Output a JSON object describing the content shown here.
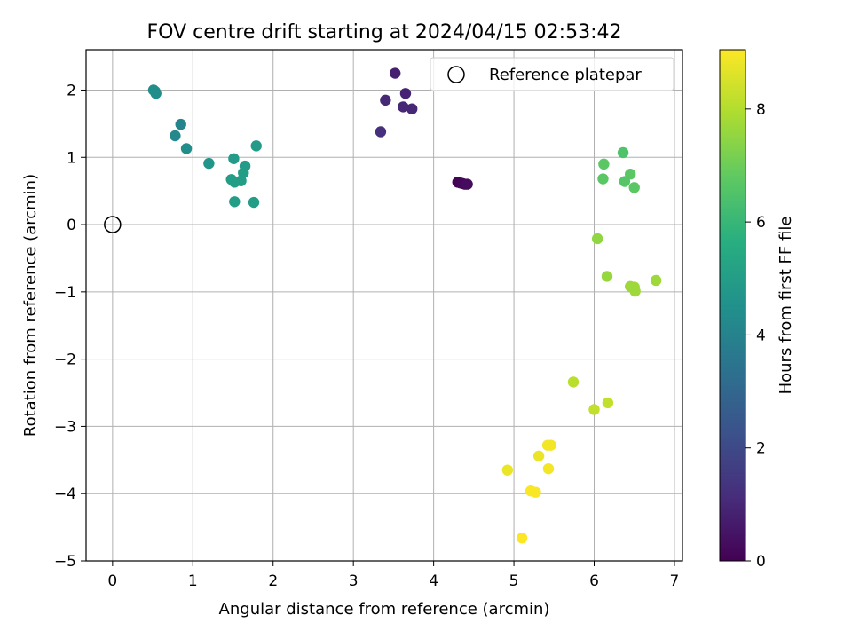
{
  "chart_data": {
    "type": "scatter",
    "title": "FOV centre drift starting at 2024/04/15 02:53:42",
    "xlabel": "Angular distance from reference (arcmin)",
    "ylabel": "Rotation from reference (arcmin)",
    "xlim": [
      -0.33,
      7.1
    ],
    "ylim": [
      -5.0,
      2.6
    ],
    "xticks": [
      0,
      1,
      2,
      3,
      4,
      5,
      6,
      7
    ],
    "yticks": [
      -5,
      -4,
      -3,
      -2,
      -1,
      0,
      1,
      2
    ],
    "xtick_labels": [
      "0",
      "1",
      "2",
      "3",
      "4",
      "5",
      "6",
      "7"
    ],
    "ytick_labels": [
      "−5",
      "−4",
      "−3",
      "−2",
      "−1",
      "0",
      "1",
      "2"
    ],
    "grid": true,
    "legend": {
      "placement": "top-right",
      "entries": [
        "Reference platepar"
      ]
    },
    "reference_point": {
      "label": "Reference platepar",
      "x": 0,
      "y": 0
    },
    "colorbar": {
      "label": "Hours from first FF file",
      "colormap": "viridis",
      "min": 0,
      "max": 9.05,
      "ticks": [
        0,
        2,
        4,
        6,
        8
      ],
      "tick_labels": [
        "0",
        "2",
        "4",
        "6",
        "8"
      ]
    },
    "points": [
      {
        "x": 4.3,
        "y": 0.63,
        "hours": 0.05
      },
      {
        "x": 4.33,
        "y": 0.62,
        "hours": 0.1
      },
      {
        "x": 4.36,
        "y": 0.61,
        "hours": 0.15
      },
      {
        "x": 4.39,
        "y": 0.6,
        "hours": 0.2
      },
      {
        "x": 4.42,
        "y": 0.6,
        "hours": 0.25
      },
      {
        "x": 3.52,
        "y": 2.25,
        "hours": 0.8
      },
      {
        "x": 3.65,
        "y": 1.95,
        "hours": 0.9
      },
      {
        "x": 3.4,
        "y": 1.85,
        "hours": 1.0
      },
      {
        "x": 3.62,
        "y": 1.75,
        "hours": 1.0
      },
      {
        "x": 3.73,
        "y": 1.72,
        "hours": 1.0
      },
      {
        "x": 3.34,
        "y": 1.38,
        "hours": 1.2
      },
      {
        "x": 0.51,
        "y": 2.0,
        "hours": 4.4
      },
      {
        "x": 0.53,
        "y": 1.98,
        "hours": 4.4
      },
      {
        "x": 0.54,
        "y": 1.95,
        "hours": 4.4
      },
      {
        "x": 0.85,
        "y": 1.49,
        "hours": 4.1
      },
      {
        "x": 0.78,
        "y": 1.32,
        "hours": 4.2
      },
      {
        "x": 0.92,
        "y": 1.13,
        "hours": 4.4
      },
      {
        "x": 1.2,
        "y": 0.91,
        "hours": 4.7
      },
      {
        "x": 1.51,
        "y": 0.98,
        "hours": 4.9
      },
      {
        "x": 1.65,
        "y": 0.87,
        "hours": 4.9
      },
      {
        "x": 1.79,
        "y": 1.17,
        "hours": 4.9
      },
      {
        "x": 1.63,
        "y": 0.77,
        "hours": 5.0
      },
      {
        "x": 1.48,
        "y": 0.67,
        "hours": 5.0
      },
      {
        "x": 1.52,
        "y": 0.63,
        "hours": 5.0
      },
      {
        "x": 1.6,
        "y": 0.65,
        "hours": 5.0
      },
      {
        "x": 1.52,
        "y": 0.34,
        "hours": 5.0
      },
      {
        "x": 1.76,
        "y": 0.33,
        "hours": 5.0
      },
      {
        "x": 6.36,
        "y": 1.07,
        "hours": 6.5
      },
      {
        "x": 6.12,
        "y": 0.9,
        "hours": 6.7
      },
      {
        "x": 6.45,
        "y": 0.75,
        "hours": 6.7
      },
      {
        "x": 6.11,
        "y": 0.68,
        "hours": 6.7
      },
      {
        "x": 6.38,
        "y": 0.64,
        "hours": 6.6
      },
      {
        "x": 6.5,
        "y": 0.55,
        "hours": 6.7
      },
      {
        "x": 6.04,
        "y": -0.21,
        "hours": 7.5
      },
      {
        "x": 6.16,
        "y": -0.77,
        "hours": 7.6
      },
      {
        "x": 6.45,
        "y": -0.92,
        "hours": 7.7
      },
      {
        "x": 6.5,
        "y": -0.93,
        "hours": 7.7
      },
      {
        "x": 6.51,
        "y": -0.99,
        "hours": 7.7
      },
      {
        "x": 6.77,
        "y": -0.83,
        "hours": 7.7
      },
      {
        "x": 5.74,
        "y": -2.34,
        "hours": 8.1
      },
      {
        "x": 6.17,
        "y": -2.65,
        "hours": 8.2
      },
      {
        "x": 6.0,
        "y": -2.75,
        "hours": 8.2
      },
      {
        "x": 5.42,
        "y": -3.28,
        "hours": 8.9
      },
      {
        "x": 5.46,
        "y": -3.28,
        "hours": 8.9
      },
      {
        "x": 5.31,
        "y": -3.44,
        "hours": 8.8
      },
      {
        "x": 5.43,
        "y": -3.63,
        "hours": 8.9
      },
      {
        "x": 4.92,
        "y": -3.65,
        "hours": 8.8
      },
      {
        "x": 5.21,
        "y": -3.96,
        "hours": 9.0
      },
      {
        "x": 5.27,
        "y": -3.98,
        "hours": 9.0
      },
      {
        "x": 5.1,
        "y": -4.66,
        "hours": 9.05
      }
    ]
  }
}
